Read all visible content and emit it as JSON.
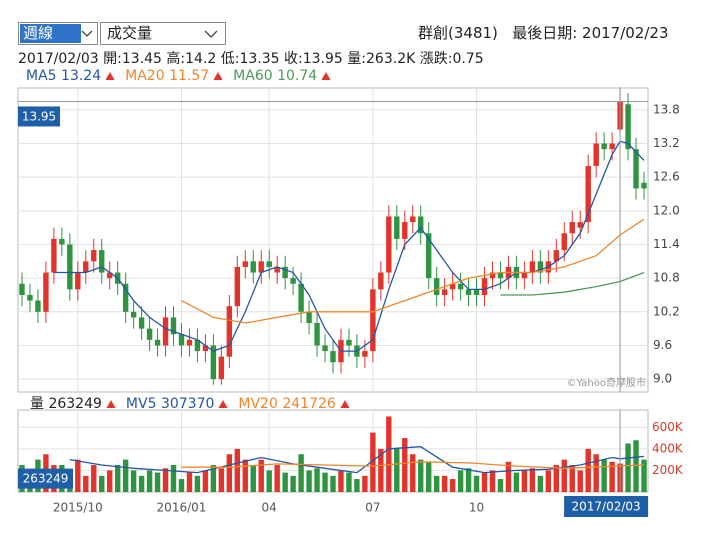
{
  "header": {
    "period": "週線",
    "indicator": "成交量",
    "stock": "群創(3481)",
    "last_date_label": "最後日期:",
    "last_date": "2017/02/23"
  },
  "info": {
    "date": "2017/02/03",
    "fields": [
      {
        "label": "開:",
        "value": 13.45
      },
      {
        "label": "高:",
        "value": 14.2
      },
      {
        "label": "低:",
        "value": 13.35
      },
      {
        "label": "收:",
        "value": 13.95
      },
      {
        "label": "量:",
        "value": "263.2K"
      },
      {
        "label": "漲跌:",
        "value": 0.75
      }
    ]
  },
  "chart_data": [
    {
      "type": "candlestick",
      "up_color": "#e3342c",
      "down_color": "#2e9440",
      "grid": true,
      "watermark": "©Yahoo奇摩股市",
      "xlim": [
        -0.5,
        78.5
      ],
      "ylim": [
        8.77,
        14.19
      ],
      "yticks": [
        {
          "value": 9,
          "label": "9.0"
        },
        9.6,
        10.2,
        10.8,
        11.4,
        {
          "value": 12,
          "label": "12.0"
        },
        12.6,
        13.2,
        13.8
      ],
      "open": [
        10.7,
        10.5,
        10.4,
        10.2,
        10.9,
        11.5,
        11.4,
        10.6,
        10.9,
        11.1,
        11.3,
        10.8,
        10.9,
        10.7,
        10.2,
        10.1,
        9.9,
        9.7,
        9.6,
        10.1,
        9.8,
        9.6,
        9.7,
        9.5,
        9.6,
        9.0,
        9.4,
        10.3,
        11.0,
        11.1,
        10.9,
        11.1,
        10.9,
        11.0,
        10.8,
        10.7,
        10.2,
        10.0,
        9.6,
        9.5,
        9.3,
        9.7,
        9.6,
        9.4,
        9.5,
        10.6,
        10.9,
        11.9,
        11.5,
        11.8,
        11.9,
        11.6,
        10.8,
        10.5,
        10.6,
        10.7,
        10.6,
        10.6,
        10.5,
        10.8,
        10.9,
        10.8,
        11.0,
        10.8,
        10.9,
        11.1,
        10.9,
        11.1,
        11.3,
        11.6,
        11.7,
        11.8,
        12.8,
        13.2,
        13.1,
        13.45,
        13.9,
        13.1,
        12.5
      ],
      "high": [
        10.9,
        10.7,
        10.6,
        11.1,
        11.7,
        11.7,
        11.6,
        11.1,
        11.3,
        11.5,
        11.5,
        11.1,
        11.1,
        10.9,
        10.4,
        10.3,
        10.1,
        9.9,
        10.3,
        10.3,
        10.0,
        9.9,
        9.9,
        9.8,
        9.8,
        9.6,
        10.5,
        11.2,
        11.3,
        11.3,
        11.3,
        11.3,
        11.2,
        11.2,
        11.0,
        10.9,
        10.4,
        10.2,
        9.8,
        9.7,
        9.9,
        9.9,
        9.8,
        9.7,
        10.8,
        11.1,
        12.1,
        12.1,
        12.0,
        12.1,
        12.1,
        11.8,
        11.0,
        10.8,
        10.9,
        10.9,
        10.8,
        10.8,
        11.0,
        11.1,
        11.1,
        11.2,
        11.2,
        11.1,
        11.3,
        11.3,
        11.3,
        11.5,
        11.8,
        12.0,
        12.0,
        13.0,
        13.4,
        13.4,
        13.4,
        14.2,
        14.1,
        13.3,
        12.7
      ],
      "low": [
        10.3,
        10.2,
        10.0,
        10.0,
        10.7,
        11.2,
        10.4,
        10.4,
        10.7,
        10.9,
        10.7,
        10.6,
        10.5,
        10.0,
        9.9,
        9.7,
        9.5,
        9.4,
        9.4,
        9.6,
        9.4,
        9.4,
        9.3,
        9.3,
        8.9,
        8.9,
        9.2,
        10.1,
        10.8,
        10.7,
        10.7,
        10.8,
        10.7,
        10.6,
        10.5,
        10.0,
        9.8,
        9.4,
        9.3,
        9.1,
        9.1,
        9.4,
        9.2,
        9.2,
        9.3,
        10.4,
        10.7,
        11.3,
        11.3,
        11.6,
        11.4,
        10.6,
        10.3,
        10.3,
        10.4,
        10.4,
        10.3,
        10.3,
        10.3,
        10.6,
        10.6,
        10.6,
        10.6,
        10.6,
        10.7,
        10.7,
        10.7,
        10.9,
        11.1,
        11.4,
        11.5,
        11.6,
        12.6,
        12.9,
        12.9,
        13.35,
        12.9,
        12.2,
        12.2
      ],
      "close": [
        10.5,
        10.4,
        10.2,
        10.9,
        11.5,
        11.4,
        10.6,
        10.9,
        11.1,
        11.3,
        10.9,
        10.9,
        10.7,
        10.2,
        10.1,
        9.9,
        9.7,
        9.6,
        10.1,
        9.8,
        9.6,
        9.7,
        9.5,
        9.6,
        9.0,
        9.4,
        10.3,
        11.0,
        11.1,
        10.9,
        11.1,
        11.0,
        11.0,
        10.8,
        10.7,
        10.2,
        10.0,
        9.6,
        9.5,
        9.3,
        9.7,
        9.6,
        9.4,
        9.5,
        10.6,
        10.9,
        11.9,
        11.5,
        11.8,
        11.9,
        11.6,
        10.8,
        10.5,
        10.6,
        10.7,
        10.6,
        10.5,
        10.5,
        10.8,
        10.9,
        10.8,
        11.0,
        10.8,
        10.9,
        11.1,
        10.9,
        11.1,
        11.3,
        11.6,
        11.8,
        11.8,
        12.8,
        13.2,
        13.1,
        13.2,
        13.95,
        13.1,
        12.4,
        12.4
      ],
      "lines": [
        {
          "name": "MA5",
          "color": "#2456a8",
          "legend_value": 13.24,
          "x": [
            4,
            6,
            8,
            10,
            12,
            14,
            16,
            18,
            20,
            22,
            24,
            26,
            28,
            30,
            32,
            34,
            36,
            38,
            40,
            42,
            44,
            46,
            48,
            50,
            52,
            54,
            56,
            58,
            60,
            62,
            64,
            66,
            68,
            70,
            72,
            74,
            75,
            76,
            78
          ],
          "values": [
            10.9,
            10.9,
            10.9,
            11.0,
            10.8,
            10.4,
            10.1,
            9.9,
            9.8,
            9.7,
            9.5,
            9.6,
            10.2,
            10.9,
            11.0,
            10.9,
            10.5,
            9.9,
            9.5,
            9.5,
            9.7,
            10.6,
            11.4,
            11.7,
            11.3,
            10.9,
            10.6,
            10.6,
            10.7,
            10.9,
            10.9,
            11.0,
            11.2,
            11.6,
            12.3,
            13.0,
            13.24,
            13.2,
            12.9
          ]
        },
        {
          "name": "MA20",
          "color": "#f0862a",
          "legend_value": 11.57,
          "x": [
            20,
            24,
            28,
            32,
            36,
            40,
            44,
            48,
            52,
            56,
            60,
            64,
            68,
            72,
            75,
            78
          ],
          "values": [
            10.4,
            10.1,
            10.0,
            10.1,
            10.2,
            10.2,
            10.2,
            10.4,
            10.6,
            10.8,
            10.9,
            10.9,
            11.0,
            11.2,
            11.57,
            11.85
          ]
        },
        {
          "name": "MA60",
          "color": "#4f9a55",
          "legend_value": 10.74,
          "x": [
            60,
            64,
            68,
            72,
            75,
            78
          ],
          "values": [
            10.5,
            10.5,
            10.55,
            10.65,
            10.74,
            10.9
          ]
        }
      ]
    },
    {
      "type": "bar",
      "legend_label": "量",
      "legend_value": 263249,
      "xlim": [
        -0.5,
        78.5
      ],
      "ylim": [
        0,
        760000
      ],
      "yticks": [
        {
          "value": 200000,
          "label": "200K"
        },
        {
          "value": 400000,
          "label": "400K"
        },
        {
          "value": 600000,
          "label": "600K"
        }
      ],
      "xticks": [
        {
          "value": 7,
          "label": "2015/10"
        },
        {
          "value": 20,
          "label": "2016/01"
        },
        {
          "value": 31,
          "label": "04"
        },
        {
          "value": 44,
          "label": "07"
        },
        {
          "value": 57,
          "label": "10"
        }
      ],
      "values": [
        250000,
        200000,
        300000,
        350000,
        250000,
        250000,
        200000,
        300000,
        150000,
        250000,
        150000,
        200000,
        250000,
        300000,
        200000,
        150000,
        200000,
        180000,
        220000,
        250000,
        120000,
        180000,
        150000,
        200000,
        250000,
        220000,
        350000,
        400000,
        300000,
        250000,
        300000,
        200000,
        250000,
        180000,
        150000,
        350000,
        200000,
        220000,
        180000,
        150000,
        200000,
        180000,
        120000,
        150000,
        550000,
        400000,
        700000,
        400000,
        500000,
        350000,
        300000,
        280000,
        150000,
        150000,
        120000,
        200000,
        220000,
        150000,
        180000,
        200000,
        120000,
        280000,
        180000,
        200000,
        220000,
        150000,
        200000,
        250000,
        300000,
        250000,
        200000,
        400000,
        350000,
        300000,
        280000,
        263249,
        450000,
        480000,
        300000
      ],
      "lines": [
        {
          "name": "MV5",
          "color": "#2456a8",
          "legend_value": 307370,
          "x": [
            6,
            10,
            14,
            18,
            22,
            26,
            30,
            34,
            38,
            42,
            46,
            50,
            54,
            58,
            62,
            66,
            70,
            74,
            75,
            78
          ],
          "values": [
            300000,
            250000,
            220000,
            200000,
            180000,
            250000,
            320000,
            260000,
            220000,
            180000,
            400000,
            420000,
            230000,
            180000,
            200000,
            210000,
            250000,
            320000,
            307370,
            330000
          ]
        },
        {
          "name": "MV20",
          "color": "#f0862a",
          "legend_value": 241726,
          "x": [
            20,
            26,
            32,
            38,
            44,
            50,
            56,
            62,
            68,
            75,
            78
          ],
          "values": [
            230000,
            230000,
            260000,
            250000,
            240000,
            280000,
            270000,
            240000,
            220000,
            241726,
            250000
          ]
        }
      ]
    }
  ]
}
